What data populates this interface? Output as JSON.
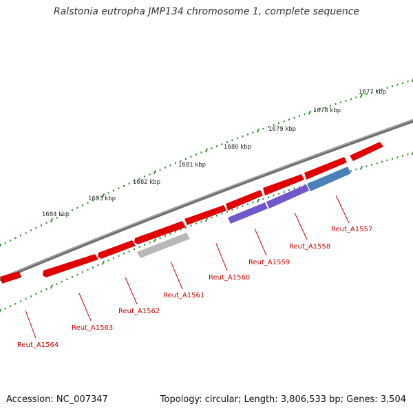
{
  "title": "Ralstonia eutropha JMP134 chromosome 1, complete sequence",
  "footer": {
    "accession_label": "Accession:",
    "accession": "NC_007347",
    "topology_label": "Topology:",
    "topology": "circular",
    "length_label": "Length:",
    "length": "3,806,533 bp",
    "genes_label": "Genes:",
    "genes": "3,504"
  },
  "scale_ticks": [
    {
      "label": "1677 kbp"
    },
    {
      "label": "1678 kbp"
    },
    {
      "label": "1679 kbp"
    },
    {
      "label": "1680 kbp"
    },
    {
      "label": "1681 kbp"
    },
    {
      "label": "1682 kbp"
    },
    {
      "label": "1683 kbp"
    },
    {
      "label": "1684 kbp"
    }
  ],
  "genes": [
    {
      "name": "Reut_A1557",
      "color": "#4a7fb8"
    },
    {
      "name": "Reut_A1558",
      "color": "#7057cc"
    },
    {
      "name": "Reut_A1559",
      "color": "#7057cc"
    },
    {
      "name": "Reut_A1560",
      "color": "#e00000"
    },
    {
      "name": "Reut_A1561",
      "color": "#b8b8b8"
    },
    {
      "name": "Reut_A1562",
      "color": "#e00000"
    },
    {
      "name": "Reut_A1563",
      "color": "#e00000"
    },
    {
      "name": "Reut_A1564",
      "color": "#e00000"
    }
  ],
  "colors": {
    "backbone": "#808080",
    "scale_dots": "#2f8f2f",
    "forward_strand": "#e00000",
    "label_line": "#cc0000"
  }
}
